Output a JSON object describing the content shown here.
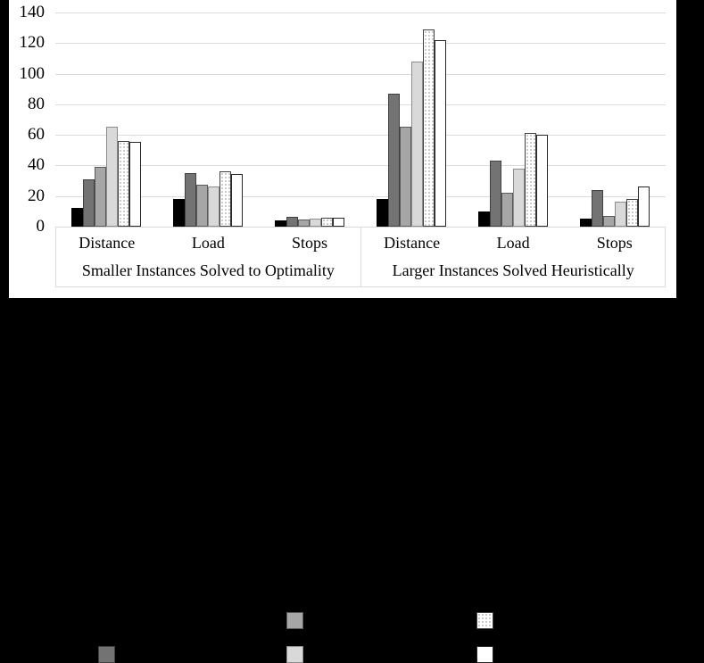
{
  "chart_data": {
    "type": "bar",
    "title": "",
    "panels": [
      {
        "label": "Smaller Instances Solved to Optimality",
        "categories": [
          "Distance",
          "Load",
          "Stops"
        ]
      },
      {
        "label": "Larger Instances Solved Heuristically",
        "categories": [
          "Distance",
          "Load",
          "Stops"
        ]
      }
    ],
    "series": [
      {
        "name": "solid-black",
        "fill": "#000000",
        "border": "#000000",
        "pattern": "solid",
        "values": [
          11,
          17,
          3,
          17,
          9,
          4
        ]
      },
      {
        "name": "dark-gray",
        "fill": "#737373",
        "border": "#404040",
        "pattern": "solid",
        "values": [
          30,
          34,
          5,
          86,
          42,
          23
        ]
      },
      {
        "name": "medium-gray",
        "fill": "#a6a6a6",
        "border": "#595959",
        "pattern": "solid",
        "values": [
          38,
          26,
          3.5,
          64,
          21,
          6
        ]
      },
      {
        "name": "light-gray",
        "fill": "#d9d9d9",
        "border": "#8c8c8c",
        "pattern": "solid",
        "values": [
          64,
          25,
          4,
          107,
          37,
          15
        ]
      },
      {
        "name": "dotted-white",
        "fill": "#ffffff",
        "border": "#404040",
        "pattern": "dotted",
        "values": [
          55,
          35,
          4.5,
          128,
          60,
          17
        ]
      },
      {
        "name": "plain-white",
        "fill": "#ffffff",
        "border": "#262626",
        "pattern": "solid",
        "values": [
          54,
          33,
          4.5,
          121,
          59,
          25
        ]
      }
    ],
    "ylim": [
      0,
      140
    ],
    "yticks": [
      0,
      20,
      40,
      60,
      80,
      100,
      120,
      140
    ],
    "grid": true,
    "legend": {
      "position": "bottom",
      "rows": 2,
      "columns": 3,
      "labels_visible": false
    }
  },
  "colors": {
    "canvas_background": "#000000",
    "chart_background": "#ffffff",
    "gridline": "#dcdcdc",
    "axis_box_border": "#d9d9d9",
    "text": "#000000"
  }
}
